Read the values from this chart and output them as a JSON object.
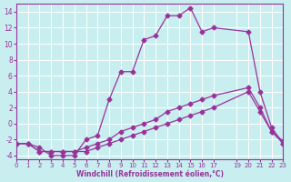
{
  "xlabel": "Windchill (Refroidissement éolien,°C)",
  "ylabel": "",
  "background_color": "#c8eef0",
  "line_color": "#993399",
  "grid_color": "#ffffff",
  "xlim": [
    0,
    23
  ],
  "ylim": [
    -4.5,
    15
  ],
  "xticks": [
    0,
    1,
    2,
    3,
    4,
    5,
    6,
    7,
    8,
    9,
    10,
    11,
    12,
    13,
    14,
    15,
    16,
    17,
    19,
    20,
    21,
    22,
    23
  ],
  "yticks": [
    -4,
    -2,
    0,
    2,
    4,
    6,
    8,
    10,
    12,
    14
  ],
  "series1_x": [
    0,
    1,
    2,
    3,
    4,
    5,
    6,
    7,
    8,
    9,
    10,
    11,
    12,
    13,
    14,
    15,
    16,
    17,
    20,
    21,
    22,
    23
  ],
  "series1_y": [
    -2.5,
    -2.5,
    -3,
    -4,
    -4,
    -4,
    -2,
    -1.5,
    3,
    6.5,
    6.5,
    10.5,
    11,
    13.5,
    13.5,
    14.5,
    11.5,
    12,
    11.5,
    4,
    -0.5,
    -2.5
  ],
  "series2_x": [
    0,
    1,
    2,
    3,
    4,
    5,
    6,
    7,
    8,
    9,
    10,
    11,
    12,
    13,
    14,
    15,
    16,
    17,
    20,
    21,
    22,
    23
  ],
  "series2_y": [
    -2.5,
    -2.5,
    -3.5,
    -3.5,
    -3.5,
    -3.5,
    -3.5,
    -3,
    -2.5,
    -2,
    -1.5,
    -1,
    -0.5,
    0,
    0.5,
    1,
    1.5,
    2,
    4,
    1.5,
    -1,
    -2.5
  ],
  "series3_x": [
    0,
    1,
    2,
    3,
    4,
    5,
    6,
    7,
    8,
    9,
    10,
    11,
    12,
    13,
    14,
    15,
    16,
    17,
    20,
    21,
    22,
    23
  ],
  "series3_y": [
    -2.5,
    -2.5,
    -3.5,
    -3.5,
    -3.5,
    -3.5,
    -3,
    -2.5,
    -2,
    -1,
    -0.5,
    0,
    0.5,
    1.5,
    2,
    2.5,
    3,
    3.5,
    4.5,
    2,
    -1,
    -2.2
  ]
}
